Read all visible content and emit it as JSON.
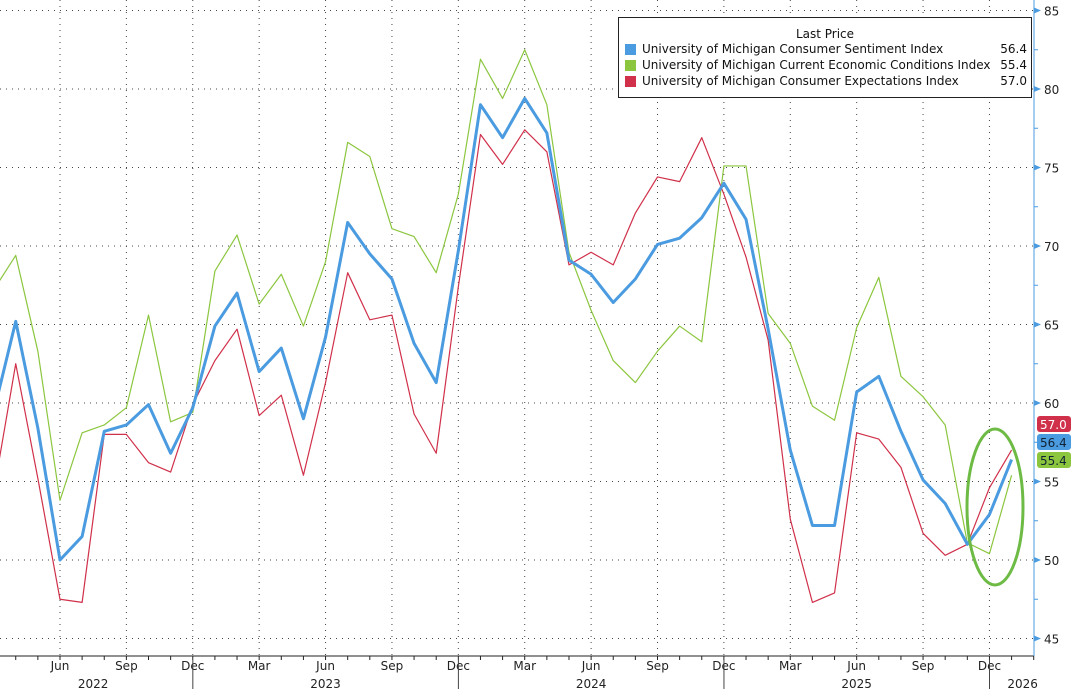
{
  "chart_data": {
    "type": "line",
    "title": "",
    "legend_title": "Last Price",
    "legend_placement": "top-right",
    "x_start": "2022-03",
    "x_tick_labels": [
      "Jun",
      "Sep",
      "Dec",
      "Mar",
      "Jun",
      "Sep",
      "Dec",
      "Mar",
      "Jun",
      "Sep",
      "Dec",
      "Mar",
      "Jun",
      "Sep",
      "Dec"
    ],
    "x_tick_month_index": [
      3,
      6,
      9,
      12,
      15,
      18,
      21,
      24,
      27,
      30,
      33,
      36,
      39,
      42,
      45
    ],
    "year_labels": [
      {
        "label": "2022",
        "month_index": 4.5
      },
      {
        "label": "2023",
        "month_index": 15
      },
      {
        "label": "2024",
        "month_index": 27
      },
      {
        "label": "2025",
        "month_index": 39
      },
      {
        "label": "2026",
        "month_index": 46.5
      }
    ],
    "year_divider_month_index": [
      9.5,
      21.5,
      33.5,
      45.5
    ],
    "ylim": [
      44,
      86
    ],
    "y_ticks": [
      45,
      50,
      55,
      60,
      65,
      70,
      75,
      80,
      85
    ],
    "grid": true,
    "series": [
      {
        "name": "University of Michigan Consumer Sentiment Index",
        "last": "56.4",
        "color": "#4a9be0",
        "values": [
          59.4,
          65.2,
          58.4,
          50.0,
          51.5,
          58.2,
          58.6,
          59.9,
          56.8,
          59.7,
          64.9,
          67.0,
          62.0,
          63.5,
          59.0,
          64.2,
          71.5,
          69.5,
          67.9,
          63.8,
          61.3,
          69.7,
          79.0,
          76.9,
          79.4,
          77.2,
          69.1,
          68.2,
          66.4,
          67.9,
          70.1,
          70.5,
          71.8,
          74.0,
          71.7,
          64.7,
          57.0,
          52.2,
          52.2,
          60.7,
          61.7,
          58.2,
          55.1,
          53.6,
          51.0,
          52.9,
          56.4
        ]
      },
      {
        "name": "University of Michigan Current Economic Conditions Index",
        "last": "55.4",
        "color": "#8cc63f",
        "values": [
          67.2,
          69.4,
          63.3,
          53.8,
          58.1,
          58.6,
          59.7,
          65.6,
          58.8,
          59.4,
          68.4,
          70.7,
          66.3,
          68.2,
          64.9,
          69.0,
          76.6,
          75.7,
          71.1,
          70.6,
          68.3,
          73.3,
          81.9,
          79.4,
          82.5,
          79.0,
          69.6,
          65.9,
          62.7,
          61.3,
          63.3,
          64.9,
          63.9,
          75.1,
          75.1,
          65.7,
          63.8,
          59.8,
          58.9,
          64.8,
          68.0,
          61.7,
          60.4,
          58.6,
          51.1,
          50.4,
          55.4
        ]
      },
      {
        "name": "University of Michigan Consumer Expectations Index",
        "last": "57.0",
        "color": "#d0304a",
        "values": [
          54.3,
          62.5,
          55.2,
          47.5,
          47.3,
          58.0,
          58.0,
          56.2,
          55.6,
          59.9,
          62.7,
          64.7,
          59.2,
          60.5,
          55.4,
          61.3,
          68.3,
          65.3,
          65.6,
          59.3,
          56.8,
          67.4,
          77.1,
          75.2,
          77.4,
          76.0,
          68.8,
          69.6,
          68.8,
          72.1,
          74.4,
          74.1,
          76.9,
          73.3,
          69.3,
          64.0,
          52.6,
          47.3,
          47.9,
          58.1,
          57.7,
          55.9,
          51.7,
          50.3,
          51.0,
          54.6,
          57.0
        ]
      }
    ],
    "annotation": "green ellipse around Nov 2025 - Jan 2026"
  }
}
